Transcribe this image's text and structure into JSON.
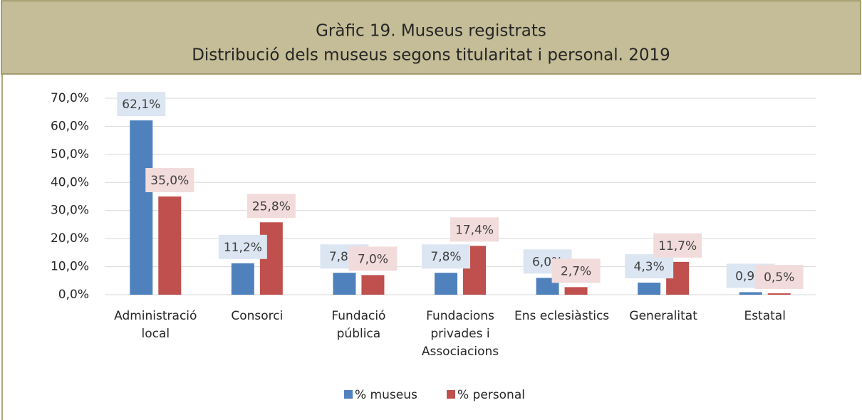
{
  "chart_data": {
    "type": "bar",
    "title": "Gràfic 19. Museus registrats",
    "subtitle": "Distribució dels museus segons titularitat i personal. 2019",
    "categories": [
      "Administració local",
      "Consorci",
      "Fundació pública",
      "Fundacions privades i Associacions",
      "Ens eclesiàstics",
      "Generalitat",
      "Estatal"
    ],
    "series": [
      {
        "name": "% museus",
        "color": "#4f81bd",
        "label_color": "#dce6f2",
        "values": [
          62.1,
          11.2,
          7.8,
          7.8,
          6.0,
          4.3,
          0.9
        ],
        "value_labels": [
          "62,1%",
          "11,2%",
          "7,8%",
          "7,8%",
          "6,0%",
          "4,3%",
          "0,9%"
        ]
      },
      {
        "name": "% personal",
        "color": "#c0504d",
        "label_color": "#f2dcdb",
        "values": [
          35.0,
          25.8,
          7.0,
          17.4,
          2.7,
          11.7,
          0.5
        ],
        "value_labels": [
          "35,0%",
          "25,8%",
          "7,0%",
          "17,4%",
          "2,7%",
          "11,7%",
          "0,5%"
        ]
      }
    ],
    "ylim": [
      0,
      70
    ],
    "yticks": [
      {
        "value": 0,
        "label": "0,0%"
      },
      {
        "value": 10,
        "label": "10,0%"
      },
      {
        "value": 20,
        "label": "20,0%"
      },
      {
        "value": 30,
        "label": "30,0%"
      },
      {
        "value": 40,
        "label": "40,0%"
      },
      {
        "value": 50,
        "label": "50,0%"
      },
      {
        "value": 60,
        "label": "60,0%"
      },
      {
        "value": 70,
        "label": "70,0%"
      }
    ],
    "grid": true,
    "legend": "bottom"
  }
}
